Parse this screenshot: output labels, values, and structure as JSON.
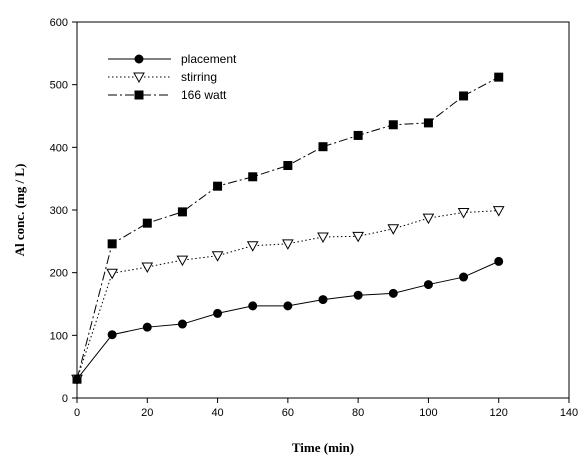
{
  "chart_data": {
    "type": "line",
    "title": "",
    "xlabel": "Time (min)",
    "ylabel": "Al conc. (mg / L)",
    "xlim": [
      0,
      140
    ],
    "ylim": [
      0,
      600
    ],
    "xticks": [
      "0",
      "20",
      "40",
      "60",
      "80",
      "100",
      "120",
      "140"
    ],
    "yticks": [
      "0",
      "100",
      "200",
      "300",
      "400",
      "500",
      "600"
    ],
    "grid": false,
    "legend_position": "top-left",
    "x": [
      0,
      10,
      20,
      30,
      40,
      50,
      60,
      70,
      80,
      90,
      100,
      110,
      120
    ],
    "series": [
      {
        "name": "placement",
        "marker": "filled-circle",
        "line_style": "solid",
        "values": [
          30,
          101,
          113,
          118,
          135,
          147,
          147,
          157,
          164,
          167,
          181,
          193,
          218
        ]
      },
      {
        "name": "stirring",
        "marker": "open-triangle-down",
        "line_style": "dotted",
        "values": [
          30,
          199,
          209,
          220,
          227,
          243,
          246,
          257,
          258,
          270,
          287,
          296,
          299
        ]
      },
      {
        "name": "166 watt",
        "marker": "filled-square",
        "line_style": "dash-dot",
        "values": [
          30,
          246,
          279,
          297,
          338,
          353,
          371,
          401,
          419,
          436,
          439,
          482,
          512
        ]
      }
    ]
  }
}
